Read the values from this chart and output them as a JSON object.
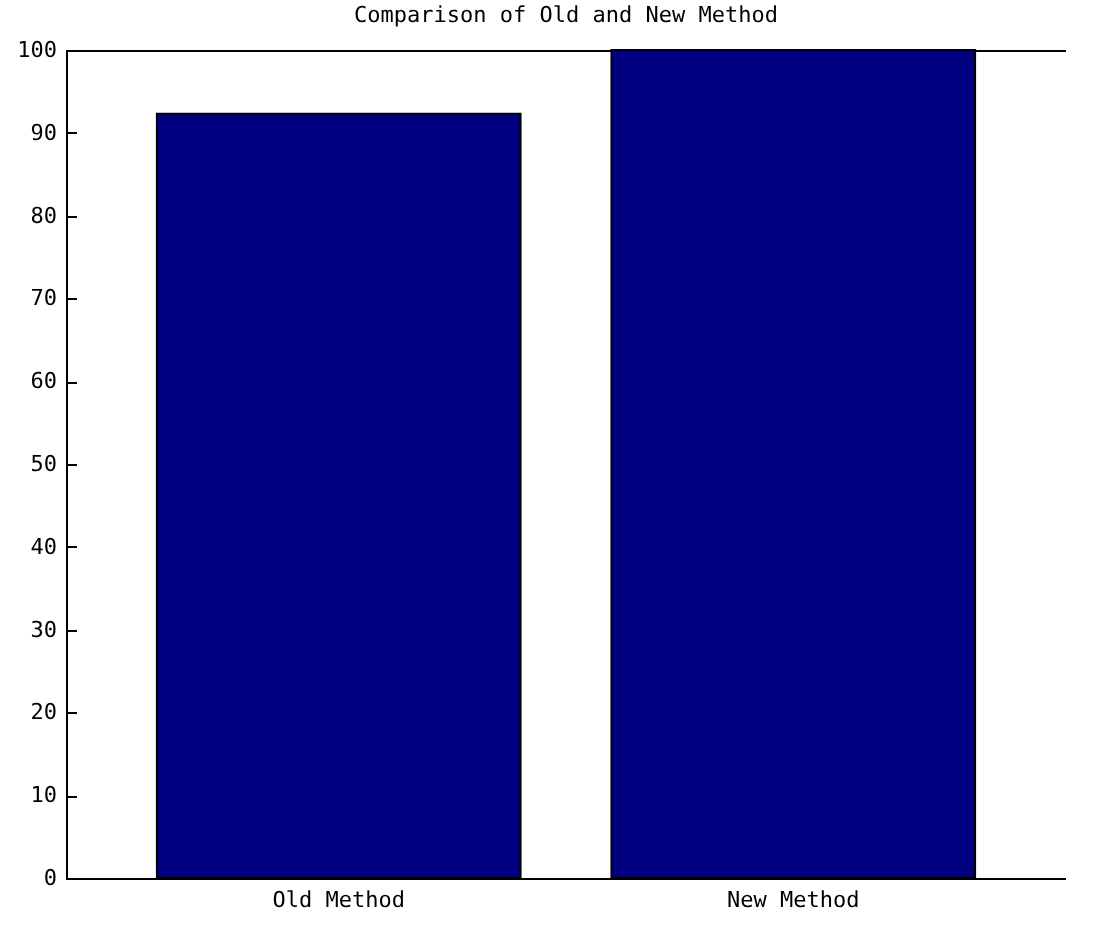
{
  "chart_data": {
    "type": "bar",
    "title": "Comparison of Old and New Method",
    "categories": [
      "Old Method",
      "New Method"
    ],
    "values": [
      92.3,
      100
    ],
    "color": "#000080",
    "ylim": [
      0,
      100
    ],
    "yticks": [
      0,
      10,
      20,
      30,
      40,
      50,
      60,
      70,
      80,
      90,
      100
    ],
    "grid": false
  }
}
